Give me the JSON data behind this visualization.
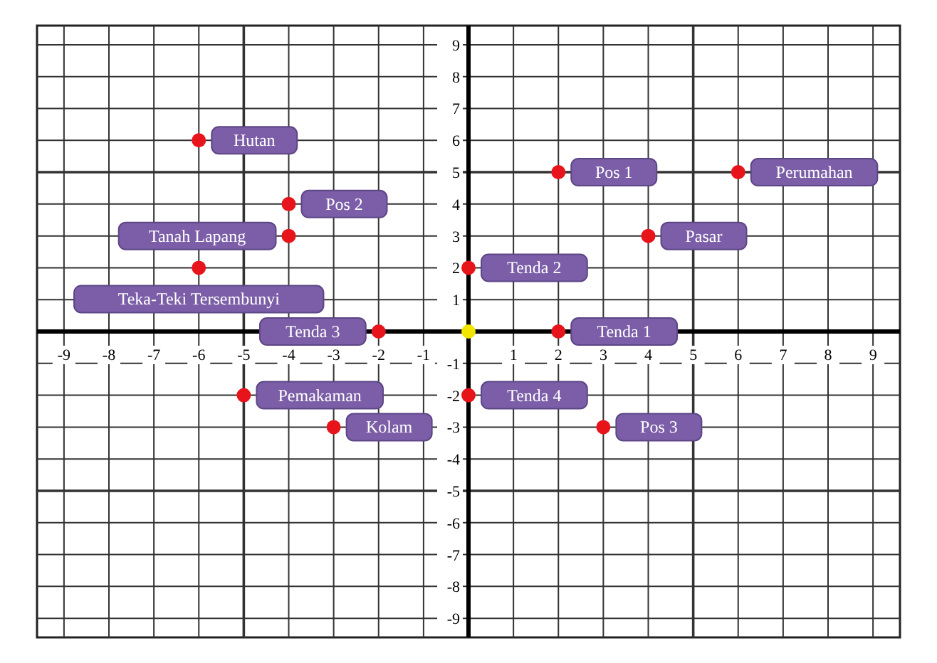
{
  "chart_data": {
    "type": "scatter",
    "xlim": [
      -9.6,
      9.6
    ],
    "ylim": [
      -9.6,
      9.6
    ],
    "xticks": [
      -9,
      -8,
      -7,
      -6,
      -5,
      -4,
      -3,
      -2,
      -1,
      1,
      2,
      3,
      4,
      5,
      6,
      7,
      8,
      9
    ],
    "yticks": [
      -9,
      -8,
      -7,
      -6,
      -5,
      -4,
      -3,
      -2,
      -1,
      1,
      2,
      3,
      4,
      5,
      6,
      7,
      8,
      9
    ],
    "grid": true,
    "marker": "circle",
    "series": [
      {
        "color": "#e8141b",
        "x": [
          -6,
          -4,
          -4,
          -6,
          2,
          6,
          0,
          4,
          2,
          -2,
          -5,
          -3,
          0,
          3
        ],
        "values": [
          6,
          4,
          3,
          2,
          5,
          5,
          2,
          3,
          0,
          0,
          -2,
          -3,
          -2,
          -3
        ]
      },
      {
        "color": "#f2e600",
        "x": [
          0
        ],
        "values": [
          0
        ]
      }
    ],
    "annotations": [
      {
        "text": "Hutan",
        "x": -6,
        "y": 6
      },
      {
        "text": "Pos 2",
        "x": -4,
        "y": 4
      },
      {
        "text": "Tanah Lapang",
        "x": -4,
        "y": 3
      },
      {
        "text": "Teka-Teki Tersembunyi",
        "x": -6,
        "y": 2
      },
      {
        "text": "Pos 1",
        "x": 2,
        "y": 5
      },
      {
        "text": "Perumahan",
        "x": 6,
        "y": 5
      },
      {
        "text": "Tenda 2",
        "x": 0,
        "y": 2
      },
      {
        "text": "Pasar",
        "x": 4,
        "y": 3
      },
      {
        "text": "Tenda 1",
        "x": 2,
        "y": 0
      },
      {
        "text": "Tenda 3",
        "x": -2,
        "y": 0
      },
      {
        "text": "Pemakaman",
        "x": -5,
        "y": -2
      },
      {
        "text": "Kolam",
        "x": -3,
        "y": -3
      },
      {
        "text": "Tenda 4",
        "x": 0,
        "y": -2
      },
      {
        "text": "Pos 3",
        "x": 3,
        "y": -3
      }
    ]
  }
}
